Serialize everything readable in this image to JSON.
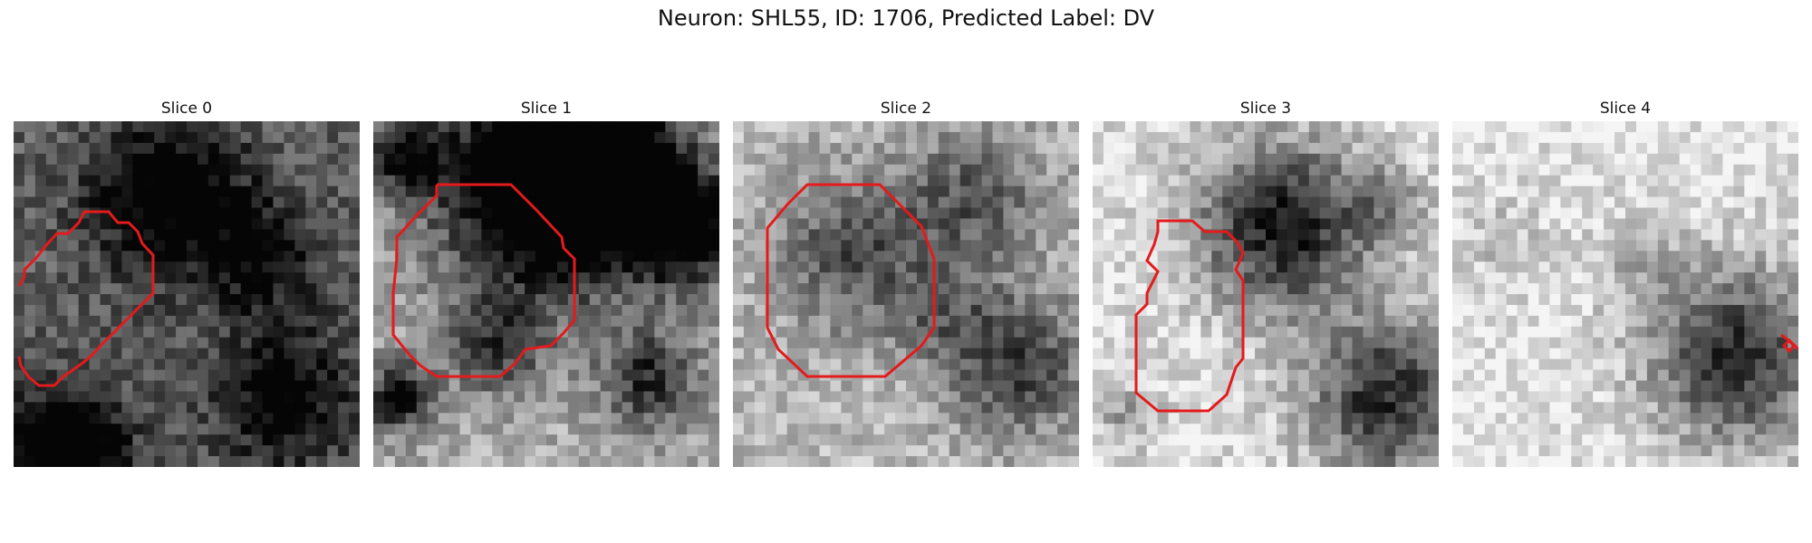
{
  "figure": {
    "title": "Neuron: SHL55, ID: 1706, Predicted Label: DV"
  },
  "panels": [
    {
      "title": "Slice 0",
      "image": "grayscale-microscopy-slice",
      "seed": 11,
      "contour_color": "#e41a1c",
      "blobs": [
        [
          0.45,
          0.22,
          0.16,
          0.55
        ],
        [
          0.72,
          0.4,
          0.12,
          0.35
        ],
        [
          0.78,
          0.8,
          0.14,
          0.45
        ],
        [
          0.15,
          0.95,
          0.12,
          0.75
        ]
      ],
      "base": 0.62
    },
    {
      "title": "Slice 1",
      "image": "grayscale-microscopy-slice",
      "seed": 23,
      "contour_color": "#e41a1c",
      "blobs": [
        [
          0.5,
          0.2,
          0.22,
          0.98
        ],
        [
          0.62,
          0.1,
          0.16,
          0.95
        ],
        [
          0.9,
          0.3,
          0.12,
          0.85
        ],
        [
          0.1,
          0.1,
          0.08,
          0.65
        ],
        [
          0.07,
          0.8,
          0.07,
          0.7
        ],
        [
          0.8,
          0.75,
          0.1,
          0.55
        ],
        [
          0.35,
          0.65,
          0.1,
          0.45
        ]
      ],
      "base": 0.3
    },
    {
      "title": "Slice 2",
      "image": "grayscale-microscopy-slice",
      "seed": 37,
      "contour_color": "#e41a1c",
      "blobs": [
        [
          0.35,
          0.38,
          0.16,
          0.45
        ],
        [
          0.7,
          0.22,
          0.14,
          0.4
        ],
        [
          0.82,
          0.7,
          0.14,
          0.55
        ],
        [
          0.6,
          0.55,
          0.1,
          0.25
        ]
      ],
      "base": 0.25
    },
    {
      "title": "Slice 3",
      "image": "grayscale-microscopy-slice",
      "seed": 41,
      "contour_color": "#e41a1c",
      "blobs": [
        [
          0.55,
          0.3,
          0.17,
          0.85
        ],
        [
          0.85,
          0.8,
          0.16,
          0.75
        ],
        [
          0.1,
          0.85,
          0.06,
          0.3
        ],
        [
          0.85,
          0.25,
          0.08,
          0.3
        ]
      ],
      "base": 0.1
    },
    {
      "title": "Slice 4",
      "image": "grayscale-microscopy-slice",
      "seed": 53,
      "contour_color": "#e41a1c",
      "blobs": [
        [
          0.82,
          0.68,
          0.18,
          0.75
        ],
        [
          0.55,
          0.4,
          0.1,
          0.2
        ],
        [
          0.15,
          0.35,
          0.1,
          0.15
        ]
      ],
      "base": 0.08
    }
  ]
}
